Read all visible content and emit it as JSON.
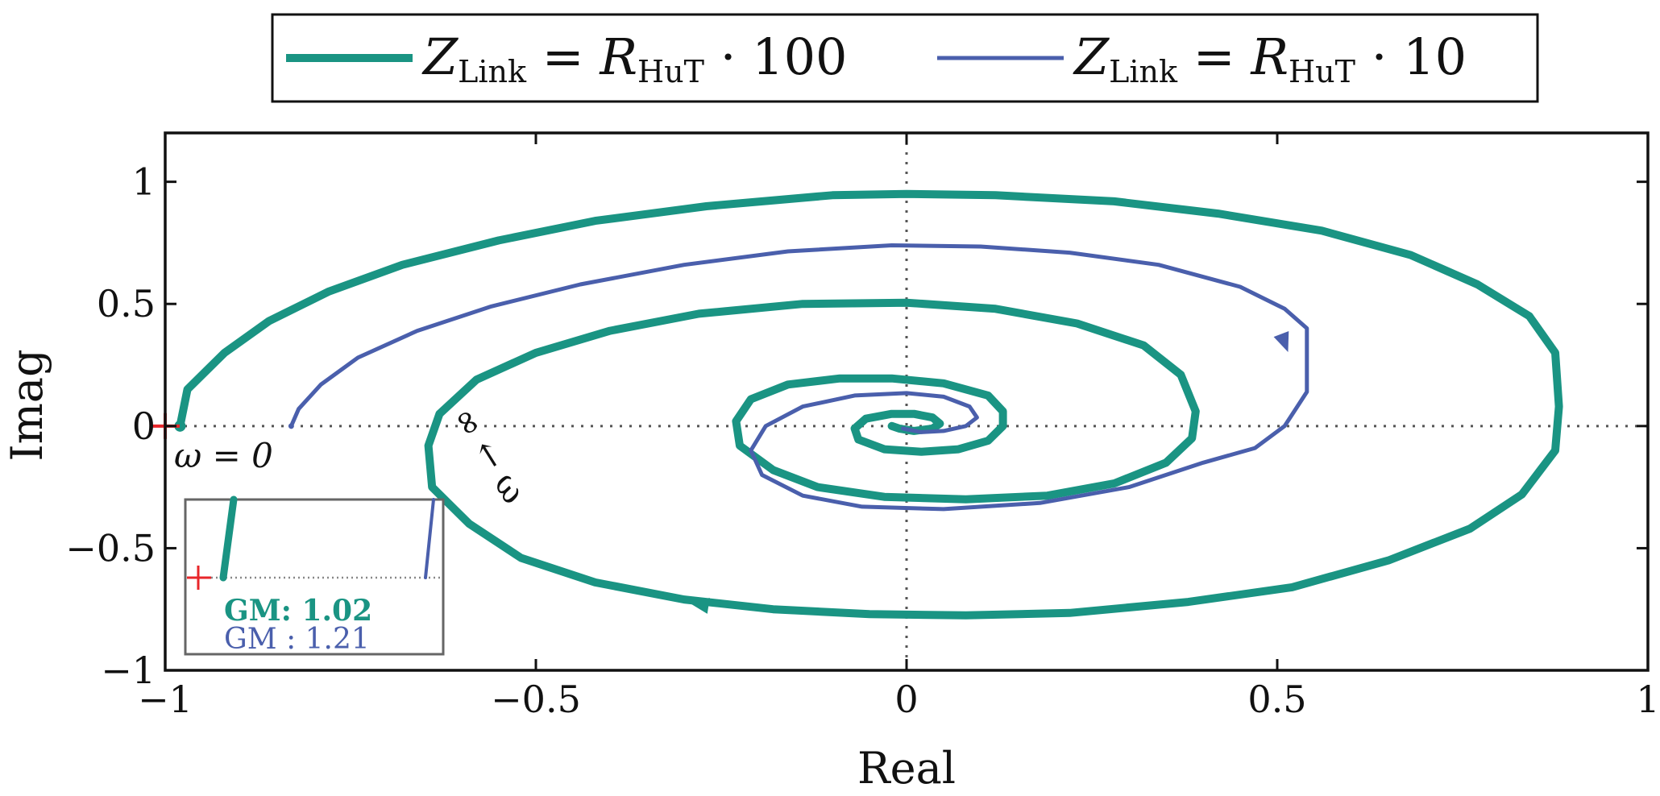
{
  "chart_data": {
    "type": "line",
    "title": "",
    "xlabel": "Real",
    "ylabel": "Imag",
    "xlim": [
      -1,
      1
    ],
    "ylim": [
      -1,
      1.2
    ],
    "xticks": [
      -1,
      -0.5,
      0,
      0.5,
      1
    ],
    "xtick_labels": [
      "−1",
      "−0.5",
      "0",
      "0.5",
      "1"
    ],
    "yticks": [
      -1,
      -0.5,
      0,
      0.5,
      1
    ],
    "ytick_labels": [
      "−1",
      "−0.5",
      "0",
      "0.5",
      "1"
    ],
    "grid": false,
    "reference_lines": [
      "x = 0 (dotted)",
      "y = 0 (dotted)"
    ],
    "legend_position": "top-center, outside plot",
    "legend": [
      {
        "symbol": "Z",
        "subscript": "Link",
        "rest": " = ",
        "symbol2": "R",
        "subscript2": "HuT",
        "factor": " · 100"
      },
      {
        "symbol": "Z",
        "subscript": "Link",
        "rest": " = ",
        "symbol2": "R",
        "subscript2": "HuT",
        "factor": " · 10"
      }
    ],
    "critical_point": {
      "x": -1,
      "y": 0,
      "color": "#e8262a"
    },
    "annotations": {
      "omega_zero": "ω = 0",
      "omega_inf": "ω → ∞"
    },
    "inset": {
      "gm1_label": "GM:",
      "gm1_value": "1.02",
      "gm2_label": "GM :",
      "gm2_value": "1.21"
    },
    "series": [
      {
        "color": "#1a9483",
        "points": [
          [
            -0.98,
            0.0
          ],
          [
            -0.97,
            0.15
          ],
          [
            -0.92,
            0.3
          ],
          [
            -0.86,
            0.43
          ],
          [
            -0.78,
            0.55
          ],
          [
            -0.68,
            0.66
          ],
          [
            -0.55,
            0.76
          ],
          [
            -0.42,
            0.84
          ],
          [
            -0.27,
            0.9
          ],
          [
            -0.1,
            0.945
          ],
          [
            0.0,
            0.95
          ],
          [
            0.12,
            0.945
          ],
          [
            0.28,
            0.92
          ],
          [
            0.42,
            0.87
          ],
          [
            0.56,
            0.8
          ],
          [
            0.68,
            0.7
          ],
          [
            0.77,
            0.58
          ],
          [
            0.84,
            0.45
          ],
          [
            0.875,
            0.3
          ],
          [
            0.88,
            0.08
          ],
          [
            0.875,
            -0.1
          ],
          [
            0.83,
            -0.28
          ],
          [
            0.76,
            -0.42
          ],
          [
            0.65,
            -0.55
          ],
          [
            0.52,
            -0.66
          ],
          [
            0.38,
            -0.72
          ],
          [
            0.22,
            -0.765
          ],
          [
            0.08,
            -0.775
          ],
          [
            -0.05,
            -0.77
          ],
          [
            -0.18,
            -0.75
          ],
          [
            -0.3,
            -0.71
          ],
          [
            -0.42,
            -0.64
          ],
          [
            -0.52,
            -0.54
          ],
          [
            -0.59,
            -0.4
          ],
          [
            -0.64,
            -0.25
          ],
          [
            -0.645,
            -0.08
          ],
          [
            -0.63,
            0.05
          ],
          [
            -0.58,
            0.19
          ],
          [
            -0.5,
            0.3
          ],
          [
            -0.4,
            0.39
          ],
          [
            -0.28,
            0.46
          ],
          [
            -0.14,
            0.5
          ],
          [
            0.0,
            0.505
          ],
          [
            0.12,
            0.48
          ],
          [
            0.23,
            0.42
          ],
          [
            0.32,
            0.33
          ],
          [
            0.37,
            0.21
          ],
          [
            0.39,
            0.06
          ],
          [
            0.385,
            -0.05
          ],
          [
            0.35,
            -0.15
          ],
          [
            0.28,
            -0.235
          ],
          [
            0.19,
            -0.285
          ],
          [
            0.08,
            -0.3
          ],
          [
            -0.03,
            -0.29
          ],
          [
            -0.12,
            -0.25
          ],
          [
            -0.18,
            -0.18
          ],
          [
            -0.225,
            -0.08
          ],
          [
            -0.23,
            0.02
          ],
          [
            -0.21,
            0.11
          ],
          [
            -0.16,
            0.17
          ],
          [
            -0.09,
            0.195
          ],
          [
            -0.02,
            0.195
          ],
          [
            0.05,
            0.175
          ],
          [
            0.11,
            0.125
          ],
          [
            0.13,
            0.06
          ],
          [
            0.13,
            0.0
          ],
          [
            0.11,
            -0.06
          ],
          [
            0.07,
            -0.095
          ],
          [
            0.02,
            -0.105
          ],
          [
            -0.03,
            -0.095
          ],
          [
            -0.065,
            -0.055
          ],
          [
            -0.07,
            -0.01
          ],
          [
            -0.055,
            0.03
          ],
          [
            -0.02,
            0.05
          ],
          [
            0.01,
            0.05
          ],
          [
            0.035,
            0.035
          ],
          [
            0.045,
            0.01
          ],
          [
            0.035,
            -0.01
          ],
          [
            0.01,
            -0.02
          ],
          [
            -0.01,
            -0.01
          ],
          [
            -0.02,
            0.0
          ]
        ],
        "arrow_at": [
          -0.28,
          -0.73
        ]
      },
      {
        "color": "#4a5fac",
        "points": [
          [
            -0.83,
            0.0
          ],
          [
            -0.82,
            0.07
          ],
          [
            -0.79,
            0.17
          ],
          [
            -0.74,
            0.28
          ],
          [
            -0.66,
            0.39
          ],
          [
            -0.56,
            0.49
          ],
          [
            -0.44,
            0.58
          ],
          [
            -0.3,
            0.66
          ],
          [
            -0.16,
            0.715
          ],
          [
            -0.02,
            0.74
          ],
          [
            0.1,
            0.735
          ],
          [
            0.22,
            0.71
          ],
          [
            0.34,
            0.66
          ],
          [
            0.45,
            0.57
          ],
          [
            0.51,
            0.48
          ],
          [
            0.54,
            0.4
          ],
          [
            0.54,
            0.24
          ],
          [
            0.54,
            0.14
          ],
          [
            0.51,
            0.0
          ],
          [
            0.47,
            -0.09
          ],
          [
            0.4,
            -0.15
          ],
          [
            0.3,
            -0.25
          ],
          [
            0.18,
            -0.315
          ],
          [
            0.05,
            -0.34
          ],
          [
            -0.06,
            -0.33
          ],
          [
            -0.14,
            -0.285
          ],
          [
            -0.195,
            -0.2
          ],
          [
            -0.21,
            -0.1
          ],
          [
            -0.19,
            0.0
          ],
          [
            -0.14,
            0.08
          ],
          [
            -0.07,
            0.125
          ],
          [
            0.0,
            0.135
          ],
          [
            0.05,
            0.12
          ],
          [
            0.085,
            0.08
          ],
          [
            0.095,
            0.035
          ],
          [
            0.08,
            0.0
          ],
          [
            0.05,
            -0.02
          ],
          [
            0.02,
            -0.025
          ],
          [
            -0.005,
            -0.01
          ]
        ],
        "arrow_at": [
          0.51,
          0.34
        ]
      }
    ]
  }
}
